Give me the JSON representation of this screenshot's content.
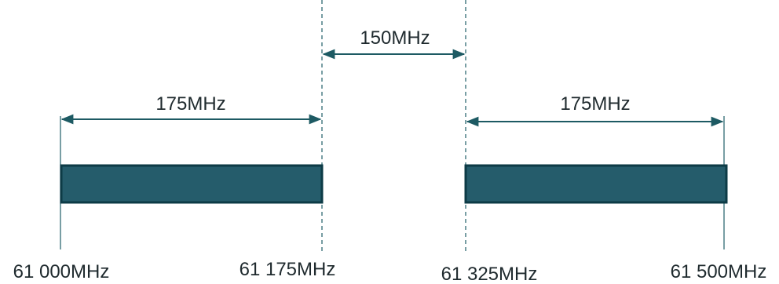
{
  "labels": {
    "guard_span": "150MHz",
    "left_span": "175MHz",
    "right_span": "175MHz",
    "edge_1": "61 000MHz",
    "edge_2": "61 175MHz",
    "edge_3": "61 325MHz",
    "edge_4": "61 500MHz"
  },
  "colors": {
    "block_fill": "#255c6b",
    "block_stroke": "#0d3b46",
    "line": "#2f6a73"
  }
}
